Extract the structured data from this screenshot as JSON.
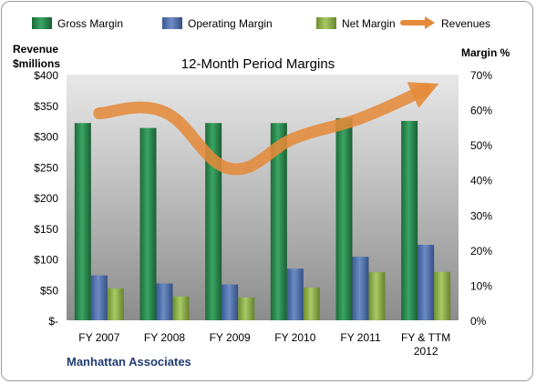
{
  "chart_data": {
    "type": "bar",
    "title": "12-Month Period Margins",
    "company": "Manhattan Associates",
    "y_left_label": [
      "Revenue",
      "$millions"
    ],
    "y_right_label": "Margin %",
    "y_left_ticks": [
      "$-",
      "$50",
      "$100",
      "$150",
      "$200",
      "$250",
      "$300",
      "$350",
      "$400"
    ],
    "y_right_ticks": [
      "0%",
      "10%",
      "20%",
      "30%",
      "40%",
      "50%",
      "60%",
      "70%"
    ],
    "ylim_left": [
      0,
      400
    ],
    "ylim_right": [
      0,
      70
    ],
    "categories": [
      [
        "FY 2007"
      ],
      [
        "FY 2008"
      ],
      [
        "FY 2009"
      ],
      [
        "FY 2010"
      ],
      [
        "FY 2011"
      ],
      [
        "FY & TTM",
        "2012"
      ]
    ],
    "series": [
      {
        "name": "Gross Margin",
        "axis": "right",
        "color": "#2e8b4e",
        "values": [
          56.2,
          54.8,
          56.2,
          56.2,
          57.6,
          56.8
        ]
      },
      {
        "name": "Operating Margin",
        "axis": "right",
        "color": "#4f6fa8",
        "values": [
          12.8,
          10.5,
          10.2,
          14.7,
          18.1,
          21.5
        ]
      },
      {
        "name": "Net Margin",
        "axis": "right",
        "color": "#8db04a",
        "values": [
          9.1,
          6.8,
          6.5,
          9.3,
          13.7,
          13.8
        ]
      },
      {
        "name": "Revenues",
        "axis": "left",
        "color": "#e48a3a",
        "values": [
          337,
          339,
          247,
          297,
          329,
          376
        ]
      }
    ],
    "legend_position": "top",
    "grid": false
  }
}
